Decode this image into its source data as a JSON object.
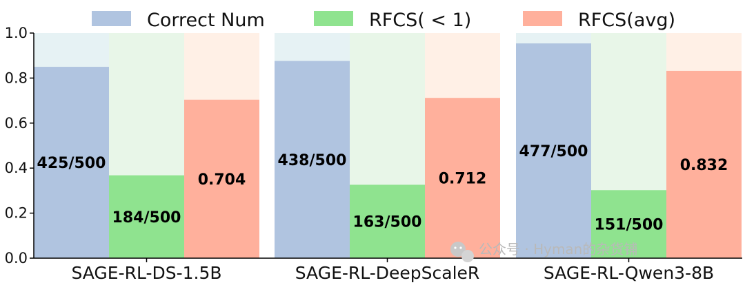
{
  "chart_data": {
    "type": "bar",
    "categories": [
      "SAGE-RL-DS-1.5B",
      "SAGE-RL-DeepScaleR",
      "SAGE-RL-Qwen3-8B"
    ],
    "series": [
      {
        "name": "Correct Num",
        "values": [
          0.85,
          0.876,
          0.954
        ],
        "labels": [
          "425/500",
          "438/500",
          "477/500"
        ],
        "color": "#b0c4e0",
        "bg_color": "#e6f2f4"
      },
      {
        "name": "RFCS( < 1)",
        "values": [
          0.368,
          0.326,
          0.302
        ],
        "labels": [
          "184/500",
          "163/500",
          "151/500"
        ],
        "color": "#8fe38f",
        "bg_color": "#e8f6e8"
      },
      {
        "name": "RFCS(avg)",
        "values": [
          0.704,
          0.712,
          0.832
        ],
        "labels": [
          "0.704",
          "0.712",
          "0.832"
        ],
        "color": "#ffb09c",
        "bg_color": "#fff0e6"
      }
    ],
    "ylim": [
      0,
      1.0
    ],
    "yticks": [
      "0.0",
      "0.2",
      "0.4",
      "0.6",
      "0.8",
      "1.0"
    ],
    "legend": "top",
    "grid": false
  },
  "watermark": {
    "text": "公众号 · Hyman的杂货铺",
    "icon": "wechat-icon"
  }
}
